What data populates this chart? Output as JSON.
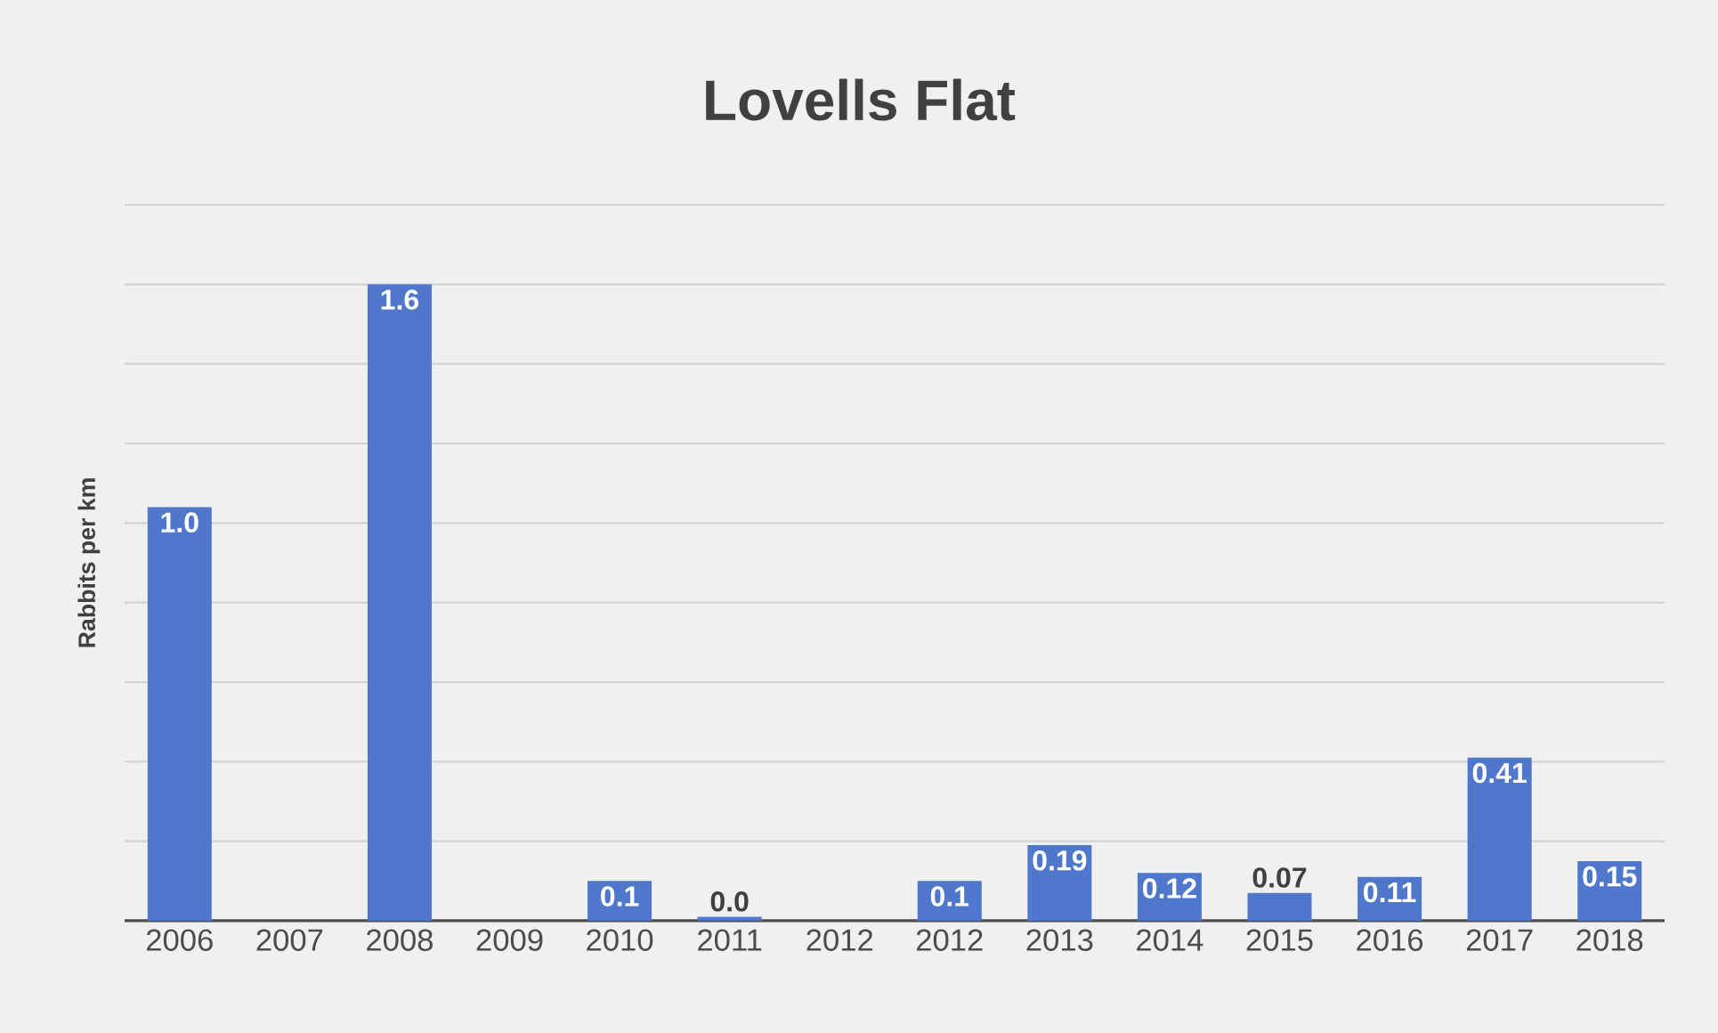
{
  "chart_data": {
    "type": "bar",
    "title": "Lovells Flat",
    "ylabel": "Rabbits per km",
    "categories": [
      "2006",
      "2007",
      "2008",
      "2009",
      "2010",
      "2011",
      "2012",
      "2012",
      "2013",
      "2014",
      "2015",
      "2016",
      "2017",
      "2018"
    ],
    "values": [
      1.04,
      null,
      1.6,
      null,
      0.1,
      0.01,
      null,
      0.1,
      0.19,
      0.12,
      0.07,
      0.11,
      0.41,
      0.15
    ],
    "value_labels": [
      "1.0",
      null,
      "1.6",
      null,
      "0.1",
      "0.0",
      null,
      "0.1",
      "0.19",
      "0.12",
      "0.07",
      "0.11",
      "0.41",
      "0.15"
    ],
    "color": "#4f78cc",
    "ylim": [
      0,
      1.8
    ],
    "yticks": [
      {
        "value": 0,
        "label": null
      },
      {
        "value": 0.2,
        "label": null
      },
      {
        "value": 0.4,
        "label": null
      },
      {
        "value": 0.6,
        "label": null
      },
      {
        "value": 0.8,
        "label": null
      },
      {
        "value": 1.0,
        "label": null
      },
      {
        "value": 1.2,
        "label": null
      },
      {
        "value": 1.4,
        "label": null
      },
      {
        "value": 1.6,
        "label": null
      },
      {
        "value": 1.8,
        "label": null
      }
    ],
    "grid": "y",
    "tick_labels": "x"
  }
}
